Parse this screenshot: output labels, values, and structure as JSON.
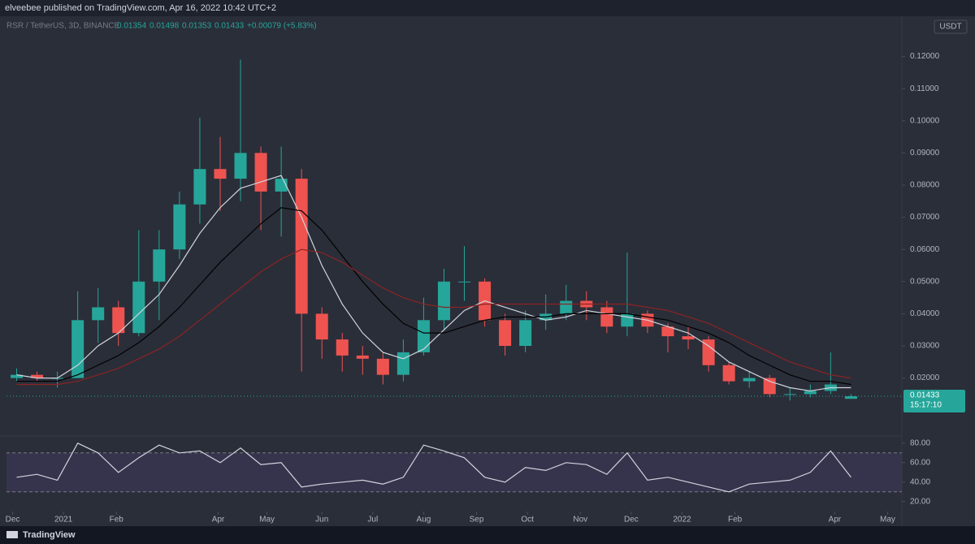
{
  "header": {
    "publisher": "elveebee published on TradingView.com, Apr 16, 2022 10:42 UTC+2",
    "symbol": "RSR / TetherUS, 3D, BINANCE",
    "change": "+0.00079 (+5.83%)",
    "currency": "USDT",
    "countdown": "15:17:10",
    "brand": "TradingView"
  },
  "chart_data": [
    {
      "type": "candlestick",
      "open": [
        0.02,
        0.021,
        0.02,
        0.02,
        0.038,
        0.042,
        0.034,
        0.05,
        0.06,
        0.074,
        0.085,
        0.082,
        0.09,
        0.078,
        0.082,
        0.04,
        0.032,
        0.027,
        0.026,
        0.021,
        0.028,
        0.038,
        0.05,
        0.05,
        0.038,
        0.03,
        0.038,
        0.04,
        0.044,
        0.042,
        0.036,
        0.04,
        0.036,
        0.033,
        0.032,
        0.024,
        0.019,
        0.02,
        0.015,
        0.015,
        0.016,
        0.01354
      ],
      "high": [
        0.023,
        0.022,
        0.022,
        0.047,
        0.048,
        0.044,
        0.066,
        0.066,
        0.078,
        0.101,
        0.095,
        0.119,
        0.092,
        0.092,
        0.085,
        0.042,
        0.034,
        0.03,
        0.028,
        0.032,
        0.045,
        0.054,
        0.061,
        0.051,
        0.04,
        0.041,
        0.046,
        0.049,
        0.047,
        0.044,
        0.059,
        0.041,
        0.037,
        0.036,
        0.033,
        0.025,
        0.022,
        0.021,
        0.017,
        0.018,
        0.028,
        0.01498
      ],
      "low": [
        0.019,
        0.019,
        0.017,
        0.02,
        0.031,
        0.03,
        0.033,
        0.038,
        0.057,
        0.068,
        0.072,
        0.075,
        0.066,
        0.064,
        0.022,
        0.026,
        0.022,
        0.021,
        0.018,
        0.019,
        0.027,
        0.035,
        0.044,
        0.036,
        0.027,
        0.028,
        0.035,
        0.038,
        0.038,
        0.034,
        0.033,
        0.034,
        0.028,
        0.029,
        0.022,
        0.018,
        0.017,
        0.014,
        0.013,
        0.014,
        0.015,
        0.01353
      ],
      "close": [
        0.021,
        0.02,
        0.02,
        0.038,
        0.042,
        0.034,
        0.05,
        0.06,
        0.074,
        0.085,
        0.082,
        0.09,
        0.078,
        0.082,
        0.04,
        0.032,
        0.027,
        0.026,
        0.021,
        0.028,
        0.038,
        0.05,
        0.05,
        0.038,
        0.03,
        0.038,
        0.04,
        0.044,
        0.042,
        0.036,
        0.04,
        0.036,
        0.033,
        0.032,
        0.024,
        0.019,
        0.02,
        0.015,
        0.015,
        0.016,
        0.018,
        0.01433
      ],
      "series": [
        {
          "color": "#d1d4dc",
          "values": [
            0.021,
            0.02,
            0.02,
            0.024,
            0.03,
            0.034,
            0.04,
            0.046,
            0.055,
            0.065,
            0.073,
            0.079,
            0.081,
            0.083,
            0.07,
            0.055,
            0.043,
            0.034,
            0.028,
            0.026,
            0.029,
            0.035,
            0.041,
            0.044,
            0.042,
            0.04,
            0.038,
            0.039,
            0.041,
            0.04,
            0.039,
            0.038,
            0.036,
            0.034,
            0.03,
            0.025,
            0.022,
            0.019,
            0.017,
            0.016,
            0.017,
            0.017
          ]
        },
        {
          "color": "#000000",
          "values": [
            0.019,
            0.019,
            0.019,
            0.021,
            0.024,
            0.027,
            0.031,
            0.036,
            0.042,
            0.049,
            0.056,
            0.062,
            0.068,
            0.073,
            0.072,
            0.066,
            0.058,
            0.05,
            0.043,
            0.037,
            0.034,
            0.034,
            0.036,
            0.038,
            0.039,
            0.039,
            0.039,
            0.04,
            0.04,
            0.04,
            0.04,
            0.039,
            0.038,
            0.036,
            0.034,
            0.031,
            0.027,
            0.024,
            0.021,
            0.019,
            0.019,
            0.018
          ]
        },
        {
          "color": "#8b2323",
          "values": [
            0.018,
            0.018,
            0.018,
            0.019,
            0.021,
            0.023,
            0.026,
            0.029,
            0.033,
            0.038,
            0.043,
            0.048,
            0.053,
            0.057,
            0.06,
            0.059,
            0.056,
            0.052,
            0.048,
            0.045,
            0.043,
            0.042,
            0.042,
            0.043,
            0.043,
            0.043,
            0.043,
            0.043,
            0.043,
            0.043,
            0.043,
            0.042,
            0.041,
            0.039,
            0.037,
            0.034,
            0.031,
            0.028,
            0.025,
            0.023,
            0.021,
            0.02
          ]
        }
      ],
      "up_color": "#26a69a",
      "down_color": "#ef5350",
      "xlim": [
        0,
        44
      ],
      "xticks": [
        {
          "value": 0.3,
          "label": "Dec"
        },
        {
          "value": 2.8,
          "label": "2021"
        },
        {
          "value": 5.4,
          "label": "Feb"
        },
        {
          "value": 10.4,
          "label": "Apr"
        },
        {
          "value": 12.8,
          "label": "May"
        },
        {
          "value": 15.5,
          "label": "Jun"
        },
        {
          "value": 18.0,
          "label": "Jul"
        },
        {
          "value": 20.5,
          "label": "Aug"
        },
        {
          "value": 23.1,
          "label": "Sep"
        },
        {
          "value": 25.6,
          "label": "Oct"
        },
        {
          "value": 28.2,
          "label": "Nov"
        },
        {
          "value": 30.7,
          "label": "Dec"
        },
        {
          "value": 33.2,
          "label": "2022"
        },
        {
          "value": 35.8,
          "label": "Feb"
        },
        {
          "value": 40.7,
          "label": "Apr"
        },
        {
          "value": 43.3,
          "label": "May"
        }
      ],
      "ylim": [
        0.005,
        0.13
      ],
      "yticks": [
        {
          "value": 0.02,
          "label": "0.02000"
        },
        {
          "value": 0.03,
          "label": "0.03000"
        },
        {
          "value": 0.04,
          "label": "0.04000"
        },
        {
          "value": 0.05,
          "label": "0.05000"
        },
        {
          "value": 0.06,
          "label": "0.06000"
        },
        {
          "value": 0.07,
          "label": "0.07000"
        },
        {
          "value": 0.08,
          "label": "0.08000"
        },
        {
          "value": 0.09,
          "label": "0.09000"
        },
        {
          "value": 0.1,
          "label": "0.10000"
        },
        {
          "value": 0.11,
          "label": "0.11000"
        },
        {
          "value": 0.12,
          "label": "0.12000"
        }
      ]
    },
    {
      "type": "line",
      "color": "#d1d4dc",
      "values": [
        45,
        48,
        42,
        80,
        70,
        50,
        65,
        78,
        70,
        72,
        60,
        75,
        58,
        60,
        35,
        38,
        40,
        42,
        38,
        45,
        78,
        72,
        65,
        45,
        40,
        55,
        52,
        60,
        58,
        48,
        70,
        42,
        45,
        40,
        35,
        30,
        38,
        40,
        42,
        50,
        72,
        45
      ],
      "xlim": [
        0,
        44
      ],
      "ylim": [
        10,
        86
      ],
      "band": [
        30,
        70
      ],
      "yticks": [
        {
          "value": 20,
          "label": "20.00"
        },
        {
          "value": 40,
          "label": "40.00"
        },
        {
          "value": 60,
          "label": "60.00"
        },
        {
          "value": 80,
          "label": "80.00"
        }
      ]
    }
  ]
}
